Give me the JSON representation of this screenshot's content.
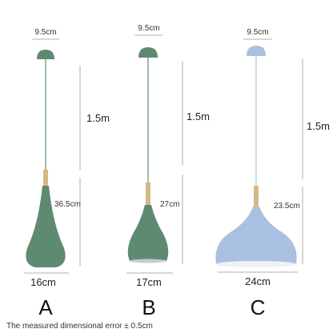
{
  "lamps": [
    {
      "canopy_width": "9.5cm",
      "cord_length": "1.5m",
      "shade_height": "36.5cm",
      "shade_width": "16cm",
      "label": "A"
    },
    {
      "canopy_width": "9.5cm",
      "cord_length": "1.5m",
      "shade_height": "27cm",
      "shade_width": "17cm",
      "label": "B"
    },
    {
      "canopy_width": "9.5cm",
      "cord_length": "1.5m",
      "shade_height": "23.5cm",
      "shade_width": "24cm",
      "label": "C"
    }
  ],
  "footer": {
    "note": "The measured dimensional error ± 0.5cm"
  }
}
